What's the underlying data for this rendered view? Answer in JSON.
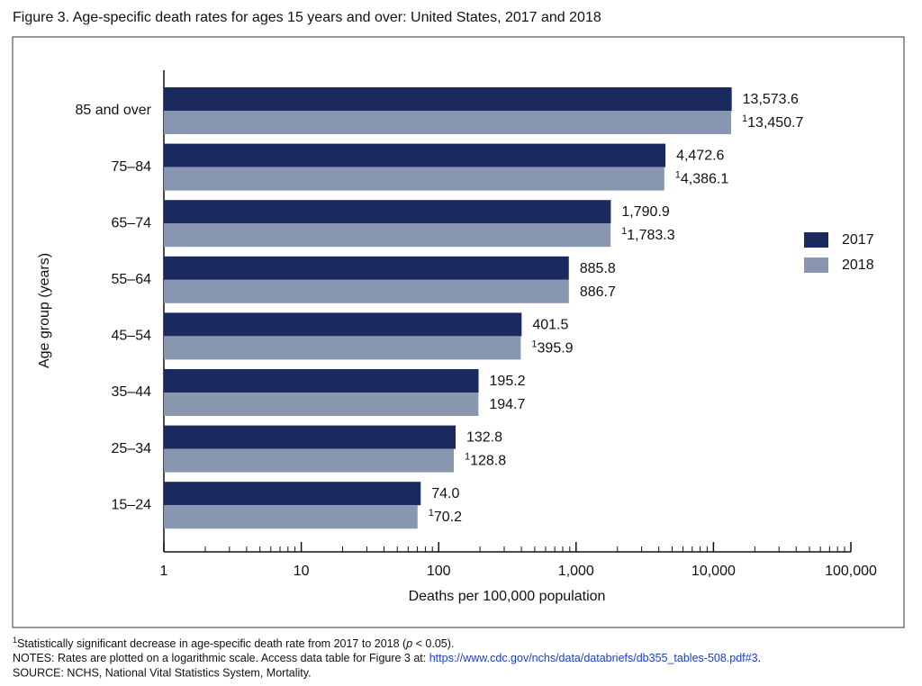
{
  "chart_data": {
    "type": "hbar",
    "title": "Figure 3. Age-specific death rates for ages 15 years and over: United States, 2017 and 2018",
    "x_label": "Deaths per 100,000 population",
    "y_label": "Age group (years)",
    "categories": [
      "85 and over",
      "75–84",
      "65–74",
      "55–64",
      "45–54",
      "35–44",
      "25–34",
      "15–24"
    ],
    "series": [
      {
        "name": "2017",
        "color": "#1b2a5e",
        "values": [
          13573.6,
          4472.6,
          1790.9,
          885.8,
          401.5,
          195.2,
          132.8,
          74.0
        ],
        "value_labels": [
          "13,573.6",
          "4,472.6",
          "1,790.9",
          "885.8",
          "401.5",
          "195.2",
          "132.8",
          "74.0"
        ]
      },
      {
        "name": "2018",
        "color": "#8896b0",
        "values": [
          13450.7,
          4386.1,
          1783.3,
          886.7,
          395.9,
          194.7,
          128.8,
          70.2
        ],
        "value_labels": [
          "13,450.7",
          "4,386.1",
          "1,783.3",
          "886.7",
          "395.9",
          "194.7",
          "128.8",
          "70.2"
        ],
        "footnote_marks": [
          "1",
          "1",
          "1",
          null,
          "1",
          null,
          "1",
          "1"
        ]
      }
    ],
    "log_scale": true,
    "xlim": [
      1,
      100000
    ],
    "xticks": [
      1,
      10,
      100,
      {
        "value": 1000,
        "label": "1,000"
      },
      {
        "value": 10000,
        "label": "10,000"
      },
      {
        "value": 100000,
        "label": "100,000"
      }
    ],
    "minor_xticks": [
      2,
      3,
      4,
      5,
      6,
      7,
      8,
      9,
      20,
      30,
      40,
      50,
      60,
      70,
      80,
      90,
      200,
      300,
      400,
      500,
      600,
      700,
      800,
      900,
      2000,
      3000,
      4000,
      5000,
      6000,
      7000,
      8000,
      9000,
      20000,
      30000,
      40000,
      50000,
      60000,
      70000,
      80000,
      90000
    ],
    "legend": "right",
    "footnote": {
      "mark": "1",
      "text_before": "Statistically significant decrease in age-specific death rate from 2017 to 2018 (",
      "italic": "p",
      "text_after": " < 0.05)."
    },
    "notes": {
      "text": "NOTES: Rates are plotted on a logarithmic scale. Access data table for Figure 3 at: ",
      "link": "https://www.cdc.gov/nchs/data/databriefs/db355_tables-508.pdf#3",
      "end": "."
    },
    "source": "SOURCE: NCHS, National Vital Statistics System, Mortality."
  }
}
